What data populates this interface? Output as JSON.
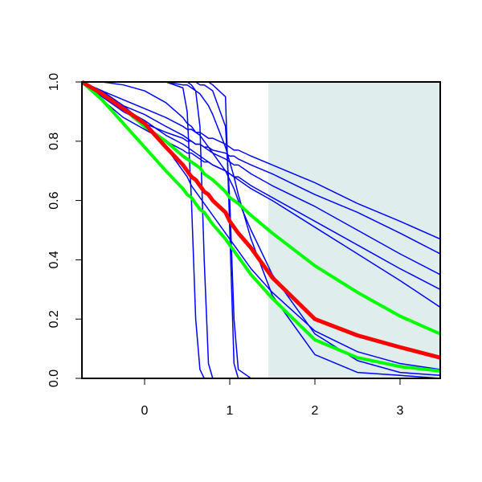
{
  "chart_data": {
    "type": "line",
    "x": [
      -0.736,
      -0.5,
      -0.25,
      0,
      0.25,
      0.45,
      0.5,
      0.55,
      0.6,
      0.65,
      0.7,
      0.75,
      0.8,
      0.95,
      1.0,
      1.05,
      1.1,
      1.25,
      1.5,
      2,
      2.5,
      3,
      3.472
    ],
    "xlim": [
      -0.736,
      3.472
    ],
    "xticks": [
      0,
      1,
      2,
      3
    ],
    "ylim": [
      0,
      1
    ],
    "yticks": [
      {
        "value": 0,
        "label": "0.0"
      },
      {
        "value": 0.2,
        "label": "0.2"
      },
      {
        "value": 0.4,
        "label": "0.4"
      },
      {
        "value": 0.6,
        "label": "0.6"
      },
      {
        "value": 0.8,
        "label": "0.8"
      },
      {
        "value": 1,
        "label": "1.0"
      }
    ],
    "shade": {
      "xmin": 1.453,
      "xmax": 3.472,
      "color": "#e0eded"
    },
    "series": [
      {
        "color": "#0000ff",
        "width": 1.5,
        "values": [
          1,
          0.97,
          0.94,
          0.91,
          0.88,
          0.85,
          0.84,
          0.84,
          0.83,
          0.83,
          0.82,
          0.81,
          0.81,
          0.79,
          0.78,
          0.77,
          0.77,
          0.75,
          0.72,
          0.66,
          0.59,
          0.53,
          0.47
        ]
      },
      {
        "color": "#0000ff",
        "width": 1.5,
        "values": [
          1,
          0.96,
          0.92,
          0.89,
          0.85,
          0.82,
          0.81,
          0.8,
          0.79,
          0.79,
          0.78,
          0.77,
          0.76,
          0.74,
          0.73,
          0.72,
          0.72,
          0.69,
          0.65,
          0.58,
          0.5,
          0.42,
          0.35
        ]
      },
      {
        "color": "#0000ff",
        "width": 1.5,
        "values": [
          1,
          0.96,
          0.91,
          0.87,
          0.82,
          0.79,
          0.78,
          0.77,
          0.76,
          0.75,
          0.74,
          0.73,
          0.72,
          0.7,
          0.69,
          0.68,
          0.67,
          0.64,
          0.6,
          0.51,
          0.42,
          0.33,
          0.24
        ]
      },
      {
        "color": "#0000ff",
        "width": 1.5,
        "values": [
          1,
          0.94,
          0.88,
          0.84,
          0.8,
          0.77,
          0.76,
          0.76,
          0.75,
          0.74,
          0.73,
          0.73,
          0.72,
          0.7,
          0.69,
          0.68,
          0.68,
          0.65,
          0.61,
          0.53,
          0.45,
          0.37,
          0.3
        ]
      },
      {
        "color": "#0000ff",
        "width": 1.5,
        "values": [
          1,
          0.95,
          0.9,
          0.86,
          0.83,
          0.81,
          0.8,
          0.8,
          0.79,
          0.79,
          0.78,
          0.78,
          0.77,
          0.76,
          0.75,
          0.75,
          0.74,
          0.72,
          0.69,
          0.62,
          0.56,
          0.49,
          0.42
        ]
      },
      {
        "color": "#0000ff",
        "width": 1.5,
        "values": [
          1,
          1,
          0.99,
          0.97,
          0.93,
          0.88,
          0.86,
          0.85,
          0.83,
          0.82,
          0.8,
          0.78,
          0.76,
          0.7,
          0.67,
          0.64,
          0.6,
          0.5,
          0.35,
          0.15,
          0.06,
          0.02,
          0.01
        ]
      },
      {
        "color": "#0000ff",
        "width": 1.5,
        "values": [
          1,
          1,
          1,
          1,
          1,
          0.99,
          0.99,
          0.98,
          0.97,
          0.96,
          0.94,
          0.92,
          0.89,
          0.78,
          0.73,
          0.68,
          0.62,
          0.47,
          0.28,
          0.08,
          0.02,
          0.01,
          0
        ]
      },
      {
        "color": "#0000ff",
        "width": 1.5,
        "values": [
          1,
          0.97,
          0.92,
          0.86,
          0.78,
          0.7,
          0.68,
          0.65,
          0.63,
          0.61,
          0.59,
          0.57,
          0.55,
          0.49,
          0.47,
          0.45,
          0.43,
          0.37,
          0.29,
          0.16,
          0.09,
          0.05,
          0.03
        ]
      },
      {
        "color": "#0000ff",
        "width": 1.5,
        "values": [
          1,
          1,
          1,
          1,
          1,
          0.98,
          0.9,
          0.6,
          0.2,
          0.03,
          0,
          0,
          0,
          0,
          0,
          0,
          0,
          0,
          0,
          0,
          0,
          0,
          0
        ]
      },
      {
        "color": "#0000ff",
        "width": 1.5,
        "values": [
          1,
          1,
          1,
          1,
          1,
          1,
          1,
          0.99,
          0.97,
          0.85,
          0.4,
          0.05,
          0,
          0,
          0,
          0,
          0,
          0,
          0,
          0,
          0,
          0,
          0
        ]
      },
      {
        "color": "#0000ff",
        "width": 1.5,
        "values": [
          1,
          1,
          1,
          1,
          1,
          1,
          1,
          1,
          1,
          1,
          1,
          1,
          0.99,
          0.95,
          0.5,
          0.05,
          0,
          0,
          0,
          0,
          0,
          0,
          0
        ]
      },
      {
        "color": "#0000ff",
        "width": 1.5,
        "values": [
          1,
          1,
          1,
          1,
          1,
          1,
          1,
          1,
          1,
          0.99,
          0.99,
          0.98,
          0.97,
          0.85,
          0.6,
          0.2,
          0.03,
          0,
          0,
          0,
          0,
          0,
          0
        ]
      },
      {
        "color": "#00ff00",
        "width": 4,
        "values": [
          1,
          0.96,
          0.91,
          0.85,
          0.8,
          0.75,
          0.74,
          0.73,
          0.72,
          0.71,
          0.69,
          0.68,
          0.67,
          0.63,
          0.61,
          0.6,
          0.59,
          0.55,
          0.49,
          0.38,
          0.29,
          0.21,
          0.15
        ]
      },
      {
        "color": "#00ff00",
        "width": 4,
        "values": [
          1,
          0.94,
          0.86,
          0.78,
          0.7,
          0.64,
          0.62,
          0.61,
          0.59,
          0.57,
          0.56,
          0.54,
          0.52,
          0.47,
          0.45,
          0.43,
          0.41,
          0.35,
          0.27,
          0.13,
          0.07,
          0.04,
          0.025
        ]
      },
      {
        "color": "#ff0000",
        "width": 5,
        "values": [
          1,
          0.96,
          0.91,
          0.86,
          0.78,
          0.72,
          0.7,
          0.68,
          0.67,
          0.65,
          0.63,
          0.62,
          0.6,
          0.56,
          0.53,
          0.51,
          0.49,
          0.44,
          0.34,
          0.2,
          0.145,
          0.105,
          0.07
        ]
      }
    ]
  }
}
